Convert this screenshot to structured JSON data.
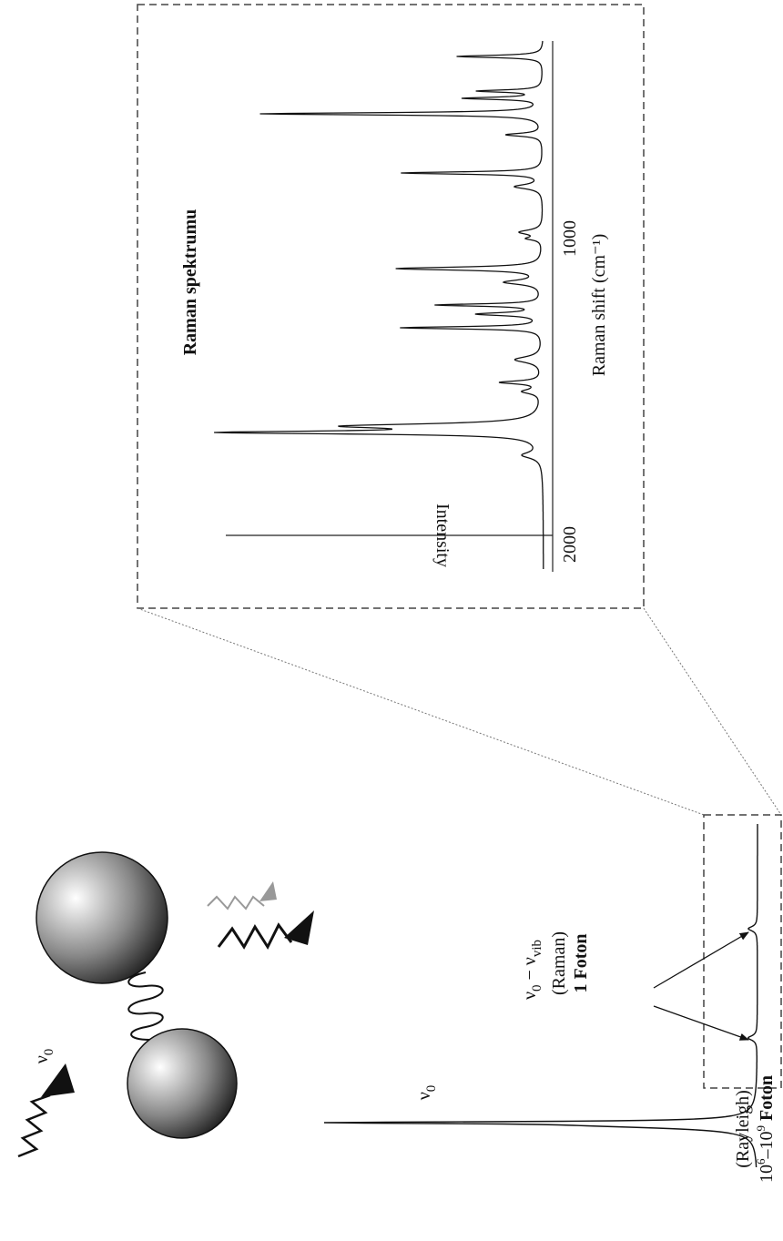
{
  "inset": {
    "title": "Raman spektrumu",
    "y_axis_label": "Intensity",
    "x_axis_label": "Raman shift (cm⁻¹)",
    "x_ticks": [
      "2000",
      "1000"
    ]
  },
  "molecule": {
    "incident": {
      "symbol": "ν",
      "sub": "0"
    }
  },
  "spectrum": {
    "rayleigh": {
      "symbol": "ν",
      "sub": "0",
      "name": "(Rayleigh)",
      "count": {
        "base": "10",
        "exp1": "6",
        "mid": "–10",
        "exp2": "9",
        "unit": " Foton"
      }
    },
    "raman": {
      "symbol": "ν",
      "sub": "0",
      "minus": " − ν",
      "sub2": "vib",
      "name": "(Raman)",
      "count": "1 Foton"
    }
  }
}
